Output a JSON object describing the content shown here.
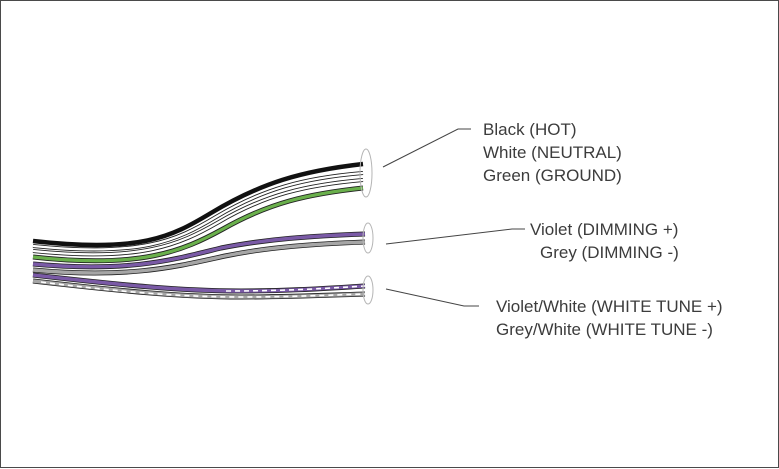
{
  "labels": {
    "power": [
      "Black (HOT)",
      "White (NEUTRAL)",
      "Green (GROUND)"
    ],
    "dimming": [
      "Violet (DIMMING +)",
      "Grey (DIMMING -)"
    ],
    "white_tune": [
      "Violet/White (WHITE TUNE +)",
      "Grey/White (WHITE TUNE -)"
    ]
  },
  "colors": {
    "black": "#111111",
    "white": "#ffffff",
    "green": "#6ab04c",
    "violet": "#7a5aa6",
    "grey": "#a6a6a6",
    "outline": "#2a2a2a"
  }
}
